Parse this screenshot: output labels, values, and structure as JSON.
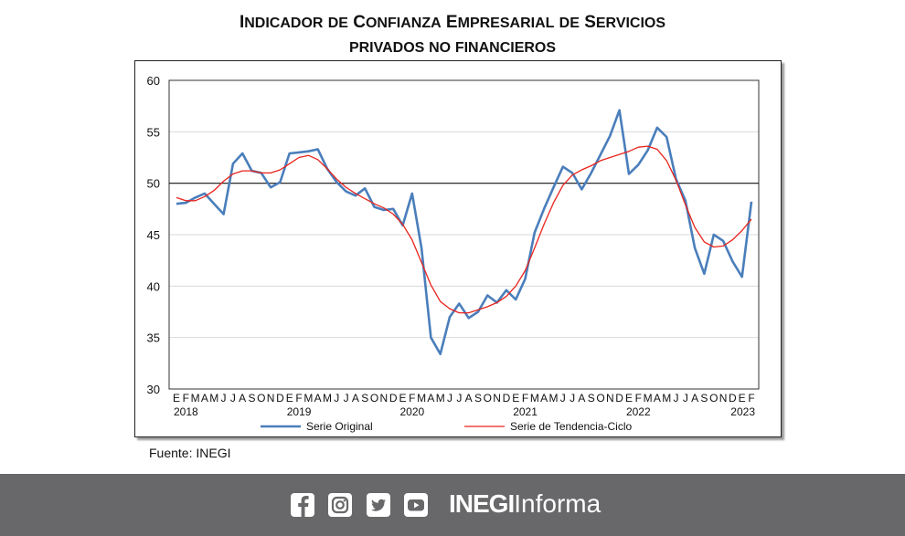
{
  "title_line1": "Indicador de Confianza Empresarial de Servicios",
  "title_line2": "privados no financieros",
  "source": "Fuente: INEGI",
  "footer": {
    "icons": [
      "facebook-icon",
      "instagram-icon",
      "twitter-icon",
      "youtube-icon"
    ],
    "brand_bold": "INEGI",
    "brand_light": "Informa",
    "background": "#68686a"
  },
  "chart_data": {
    "type": "line",
    "ylim": [
      30,
      60
    ],
    "yticks": [
      30,
      35,
      40,
      45,
      50,
      55,
      60
    ],
    "reference_line": 50,
    "grid": true,
    "legend_position": "bottom",
    "x_period": "monthly, Jan 2018 - Feb 2023",
    "month_initials": [
      "E",
      "F",
      "M",
      "A",
      "M",
      "J",
      "J",
      "A",
      "S",
      "O",
      "N",
      "D"
    ],
    "years": [
      "2018",
      "2019",
      "2020",
      "2021",
      "2022",
      "2023"
    ],
    "last_year_months": 2,
    "series": [
      {
        "name": "Serie Original",
        "color": "#4a7ebb",
        "values": [
          48.0,
          48.1,
          48.6,
          49.0,
          48.0,
          47.0,
          51.9,
          52.9,
          51.2,
          51.0,
          49.6,
          50.1,
          52.9,
          53.0,
          53.1,
          53.3,
          51.4,
          50.1,
          49.2,
          48.8,
          49.5,
          47.7,
          47.4,
          47.5,
          45.9,
          49.0,
          43.7,
          35.0,
          33.4,
          37.0,
          38.3,
          36.9,
          37.5,
          39.1,
          38.4,
          39.6,
          38.7,
          40.7,
          45.2,
          47.5,
          49.6,
          51.6,
          51.0,
          49.4,
          51.0,
          52.8,
          54.6,
          57.1,
          50.9,
          51.8,
          53.2,
          55.4,
          54.5,
          50.4,
          48.3,
          43.7,
          41.2,
          45.0,
          44.4,
          42.4,
          40.9,
          48.2
        ]
      },
      {
        "name": "Serie de Tendencia-Ciclo",
        "color": "#e8231c",
        "values": [
          48.6,
          48.3,
          48.3,
          48.7,
          49.3,
          50.2,
          50.9,
          51.2,
          51.2,
          51.0,
          51.0,
          51.3,
          51.9,
          52.5,
          52.7,
          52.3,
          51.4,
          50.4,
          49.6,
          49.0,
          48.5,
          48.0,
          47.6,
          47.0,
          46.0,
          44.5,
          42.3,
          40.1,
          38.5,
          37.8,
          37.4,
          37.4,
          37.7,
          38.0,
          38.4,
          39.0,
          40.0,
          41.5,
          43.7,
          46.0,
          48.1,
          49.8,
          50.8,
          51.3,
          51.7,
          52.2,
          52.5,
          52.8,
          53.1,
          53.5,
          53.6,
          53.3,
          52.2,
          50.3,
          47.9,
          45.7,
          44.3,
          43.8,
          43.9,
          44.5,
          45.4,
          46.5
        ]
      }
    ]
  }
}
